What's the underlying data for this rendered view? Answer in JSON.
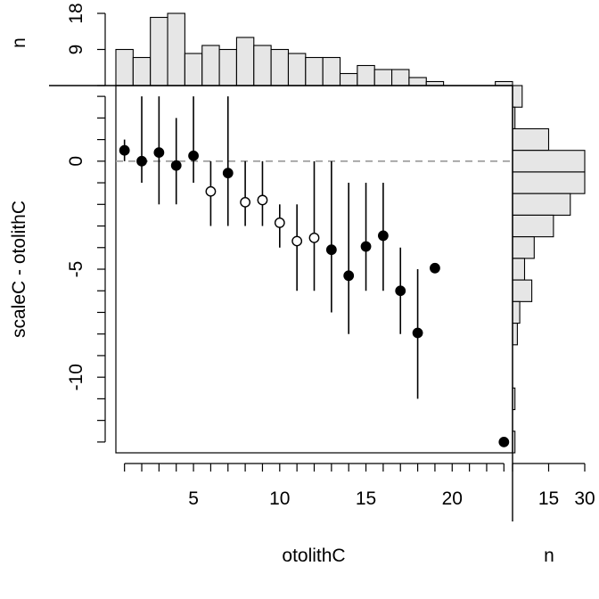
{
  "chart_data": {
    "type": "scatter",
    "xlabel": "otolithC",
    "ylabel": "scaleC - otolithC",
    "top_hist_ylabel": "n",
    "right_hist_xlabel": "n",
    "x_ticks": [
      5,
      10,
      15,
      20
    ],
    "x_minor_ticks": [
      1,
      2,
      3,
      4,
      5,
      6,
      7,
      8,
      9,
      10,
      11,
      12,
      13,
      14,
      15,
      16,
      17,
      18,
      19,
      20,
      21,
      22,
      23
    ],
    "y_ticks": [
      0,
      -5,
      -10
    ],
    "y_minor_ticks": [
      3,
      2,
      1,
      0,
      -1,
      -2,
      -3,
      -4,
      -5,
      -6,
      -7,
      -8,
      -9,
      -10,
      -11,
      -12,
      -13
    ],
    "xlim": [
      0.5,
      23.5
    ],
    "ylim": [
      -13.5,
      3.5
    ],
    "reference_line_y": 0,
    "points": [
      {
        "x": 1,
        "y": 0.5,
        "lo": 0,
        "hi": 1,
        "filled": true
      },
      {
        "x": 2,
        "y": 0.0,
        "lo": -1,
        "hi": 3,
        "filled": true
      },
      {
        "x": 3,
        "y": 0.4,
        "lo": -2,
        "hi": 3,
        "filled": true
      },
      {
        "x": 4,
        "y": -0.2,
        "lo": -2,
        "hi": 2,
        "filled": true
      },
      {
        "x": 5,
        "y": 0.25,
        "lo": -1,
        "hi": 3,
        "filled": true
      },
      {
        "x": 6,
        "y": -1.4,
        "lo": -3,
        "hi": 0,
        "filled": false
      },
      {
        "x": 7,
        "y": -0.55,
        "lo": -3,
        "hi": 3,
        "filled": true
      },
      {
        "x": 8,
        "y": -1.9,
        "lo": -3,
        "hi": 0,
        "filled": false
      },
      {
        "x": 9,
        "y": -1.8,
        "lo": -3,
        "hi": 0,
        "filled": false
      },
      {
        "x": 10,
        "y": -2.85,
        "lo": -4,
        "hi": -2,
        "filled": false
      },
      {
        "x": 11,
        "y": -3.7,
        "lo": -6,
        "hi": -2,
        "filled": false
      },
      {
        "x": 12,
        "y": -3.55,
        "lo": -6,
        "hi": 0,
        "filled": false
      },
      {
        "x": 13,
        "y": -4.1,
        "lo": -7,
        "hi": 0,
        "filled": true
      },
      {
        "x": 14,
        "y": -5.3,
        "lo": -8,
        "hi": -1,
        "filled": true
      },
      {
        "x": 15,
        "y": -3.95,
        "lo": -6,
        "hi": -1,
        "filled": true
      },
      {
        "x": 16,
        "y": -3.45,
        "lo": -6,
        "hi": -1,
        "filled": true
      },
      {
        "x": 17,
        "y": -6.0,
        "lo": -8,
        "hi": -4,
        "filled": true
      },
      {
        "x": 18,
        "y": -7.95,
        "lo": -11,
        "hi": -5,
        "filled": true
      },
      {
        "x": 19,
        "y": -4.95,
        "lo": -5,
        "hi": -5,
        "filled": true
      },
      {
        "x": 23,
        "y": -13.0,
        "lo": -13,
        "hi": -13,
        "filled": true
      }
    ],
    "top_histogram": {
      "ticks": [
        9,
        18
      ],
      "ylim": [
        0,
        18
      ],
      "bins": [
        {
          "x": 1,
          "n": 9
        },
        {
          "x": 2,
          "n": 7
        },
        {
          "x": 3,
          "n": 17
        },
        {
          "x": 4,
          "n": 18
        },
        {
          "x": 5,
          "n": 8
        },
        {
          "x": 6,
          "n": 10
        },
        {
          "x": 7,
          "n": 9
        },
        {
          "x": 8,
          "n": 12
        },
        {
          "x": 9,
          "n": 10
        },
        {
          "x": 10,
          "n": 9
        },
        {
          "x": 11,
          "n": 8
        },
        {
          "x": 12,
          "n": 7
        },
        {
          "x": 13,
          "n": 7
        },
        {
          "x": 14,
          "n": 3
        },
        {
          "x": 15,
          "n": 5
        },
        {
          "x": 16,
          "n": 4
        },
        {
          "x": 17,
          "n": 4
        },
        {
          "x": 18,
          "n": 2
        },
        {
          "x": 19,
          "n": 1
        },
        {
          "x": 23,
          "n": 1
        }
      ]
    },
    "right_histogram": {
      "ticks": [
        15,
        30
      ],
      "xlim": [
        0,
        30
      ],
      "bins": [
        {
          "y": 3,
          "n": 4
        },
        {
          "y": 2,
          "n": 1
        },
        {
          "y": 1,
          "n": 15
        },
        {
          "y": 0,
          "n": 30
        },
        {
          "y": -1,
          "n": 30
        },
        {
          "y": -2,
          "n": 24
        },
        {
          "y": -3,
          "n": 17
        },
        {
          "y": -4,
          "n": 9
        },
        {
          "y": -5,
          "n": 5
        },
        {
          "y": -6,
          "n": 8
        },
        {
          "y": -7,
          "n": 3
        },
        {
          "y": -8,
          "n": 2
        },
        {
          "y": -9,
          "n": 0
        },
        {
          "y": -10,
          "n": 0
        },
        {
          "y": -11,
          "n": 1
        },
        {
          "y": -12,
          "n": 0
        },
        {
          "y": -13,
          "n": 1
        }
      ]
    }
  }
}
